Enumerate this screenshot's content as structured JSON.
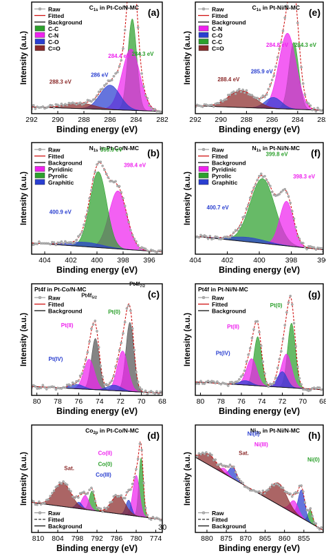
{
  "figure": {
    "stray_label": "30",
    "colors": {
      "raw": "#888888",
      "fitted": "#d01010",
      "background": "#111111",
      "c_c": "#2ca02c",
      "c_n": "#ee22ee",
      "c_o": "#2a3fd0",
      "c_eq_o": "#8b2a2a",
      "pyridinic": "#ee22ee",
      "pyrolic": "#2ca02c",
      "graphitic": "#2a3fd0",
      "pt0": "#555555",
      "ptII": "#ee22ee",
      "ptIV": "#2a3fd0",
      "co0": "#2ca02c",
      "coII": "#ee22ee",
      "coIII": "#2a3fd0",
      "sat": "#8b2a2a"
    }
  },
  "chart_data": [
    {
      "type": "line",
      "panel": "(a)",
      "title_main": "C",
      "title_sub": "1s",
      "title_rest": " in Pt-Co/N-MC",
      "xlabel": "Binding energy (eV)",
      "ylabel": "Intensity (a.u.)",
      "xlim": [
        292,
        282
      ],
      "x_reversed": true,
      "xticks": [
        292,
        290,
        288,
        286,
        284,
        282
      ],
      "legend": {
        "position": "top-left",
        "entries": [
          "Raw",
          "Fitted",
          "Background",
          "C-C",
          "C-N",
          "C-O",
          "C=O"
        ]
      },
      "background": {
        "left": 0.06,
        "right": 0.02
      },
      "series": [
        {
          "name": "C-C",
          "color_key": "c_c",
          "center": 284.3,
          "amplitude": 0.82,
          "fwhm": 0.8
        },
        {
          "name": "C-N",
          "color_key": "c_n",
          "center": 284.4,
          "amplitude": 0.55,
          "fwhm": 1.6
        },
        {
          "name": "C-O",
          "color_key": "c_o",
          "center": 286.0,
          "amplitude": 0.22,
          "fwhm": 1.8
        },
        {
          "name": "C=O",
          "color_key": "c_eq_o",
          "center": 288.3,
          "amplitude": 0.05,
          "fwhm": 2.6
        }
      ],
      "annotations": [
        {
          "text": "284.3 eV",
          "color_key": "c_c",
          "x": 283.5,
          "y": 0.52
        },
        {
          "text": "284.4 eV",
          "color_key": "c_n",
          "x": 285.3,
          "y": 0.5
        },
        {
          "text": "286 eV",
          "color_key": "c_o",
          "x": 286.8,
          "y": 0.33
        },
        {
          "text": "288.3 eV",
          "color_key": "c_eq_o",
          "x": 289.8,
          "y": 0.27
        }
      ]
    },
    {
      "type": "line",
      "panel": "(e)",
      "title_main": "C",
      "title_sub": "1s",
      "title_rest": " in Pt-Ni/N-MC",
      "xlabel": "Binding energy (eV)",
      "ylabel": "Intensity (a.u.)",
      "xlim": [
        292,
        282
      ],
      "x_reversed": true,
      "xticks": [
        292,
        290,
        288,
        286,
        284,
        282
      ],
      "legend": {
        "position": "top-left",
        "entries": [
          "Raw",
          "Fitted",
          "Background",
          "C-N",
          "C-O",
          "C-C",
          "C=O"
        ]
      },
      "background": {
        "left": 0.07,
        "right": 0.03
      },
      "series": [
        {
          "name": "C-N",
          "color_key": "c_c",
          "center": 284.3,
          "amplitude": 0.6,
          "fwhm": 0.9
        },
        {
          "name": "C-C",
          "color_key": "c_n",
          "center": 284.8,
          "amplitude": 0.68,
          "fwhm": 1.6
        },
        {
          "name": "C-O",
          "color_key": "c_o",
          "center": 285.9,
          "amplitude": 0.1,
          "fwhm": 1.5
        },
        {
          "name": "C=O",
          "color_key": "c_eq_o",
          "center": 288.4,
          "amplitude": 0.15,
          "fwhm": 2.4
        }
      ],
      "annotations": [
        {
          "text": "284.3 eV",
          "color_key": "c_c",
          "x": 283.4,
          "y": 0.6
        },
        {
          "text": "284.8 eV",
          "color_key": "c_n",
          "x": 285.6,
          "y": 0.6
        },
        {
          "text": "285.9 eV",
          "color_key": "c_o",
          "x": 286.8,
          "y": 0.36
        },
        {
          "text": "288.4 eV",
          "color_key": "c_eq_o",
          "x": 289.4,
          "y": 0.29
        }
      ]
    },
    {
      "type": "line",
      "panel": "(b)",
      "title_main": "N",
      "title_sub": "1s",
      "title_rest": " in Pt-Co/N-MC",
      "xlabel": "Binding energy (eV)",
      "ylabel": "Intensity (a.u.)",
      "xlim": [
        405,
        395
      ],
      "x_reversed": true,
      "xticks": [
        404,
        402,
        400,
        398,
        396
      ],
      "legend": {
        "position": "top-left",
        "entries": [
          "Raw",
          "Fitted",
          "Background",
          "Pyridinic",
          "Pyrolic",
          "Graphitic"
        ]
      },
      "background": {
        "left": 0.1,
        "right": 0.02
      },
      "series": [
        {
          "name": "Pyridinic",
          "color_key": "pyridinic",
          "center": 398.4,
          "amplitude": 0.52,
          "fwhm": 1.6
        },
        {
          "name": "Pyrolic",
          "color_key": "pyrolic",
          "center": 399.9,
          "amplitude": 0.68,
          "fwhm": 1.5
        },
        {
          "name": "Graphitic",
          "color_key": "graphitic",
          "center": 400.9,
          "amplitude": 0.04,
          "fwhm": 3.0
        }
      ],
      "annotations": [
        {
          "text": "399.9 eV",
          "color_key": "pyrolic",
          "x": 398.9,
          "y": 0.92
        },
        {
          "text": "398.4 eV",
          "color_key": "pyridinic",
          "x": 397.1,
          "y": 0.78
        },
        {
          "text": "400.9 eV",
          "color_key": "graphitic",
          "x": 402.8,
          "y": 0.36
        }
      ]
    },
    {
      "type": "line",
      "panel": "(f)",
      "title_main": "N",
      "title_sub": "1s",
      "title_rest": " in Pt-Ni/N-MC",
      "xlabel": "Binding energy (eV)",
      "ylabel": "Intensity (a.u.)",
      "xlim": [
        404,
        396
      ],
      "x_reversed": true,
      "xticks": [
        404,
        402,
        400,
        398,
        396
      ],
      "legend": {
        "position": "top-left",
        "entries": [
          "Raw",
          "Fitted",
          "Background",
          "Pyridinic",
          "Pyrolic",
          "Graphitic"
        ]
      },
      "background": {
        "left": 0.16,
        "right": 0.04
      },
      "series": [
        {
          "name": "Pyrolic",
          "color_key": "pyrolic",
          "center": 399.8,
          "amplitude": 0.58,
          "fwhm": 1.8
        },
        {
          "name": "Pyridinic",
          "color_key": "pyridinic",
          "center": 398.3,
          "amplitude": 0.4,
          "fwhm": 1.0
        },
        {
          "name": "Graphitic",
          "color_key": "graphitic",
          "center": 400.7,
          "amplitude": 0.04,
          "fwhm": 2.6
        }
      ],
      "annotations": [
        {
          "text": "399.8 eV",
          "color_key": "pyrolic",
          "x": 398.9,
          "y": 0.88
        },
        {
          "text": "398.3 eV",
          "color_key": "pyridinic",
          "x": 397.2,
          "y": 0.68
        },
        {
          "text": "400.7 eV",
          "color_key": "graphitic",
          "x": 402.6,
          "y": 0.4
        }
      ]
    },
    {
      "type": "line",
      "panel": "(c)",
      "title_main": "Pt4f in Pt-Co/N-MC",
      "xlabel": "Binding energy (eV)",
      "ylabel": "Intensity (a.u.)",
      "xlim": [
        80.5,
        68
      ],
      "x_reversed": true,
      "xticks": [
        80,
        78,
        76,
        74,
        72,
        70,
        68
      ],
      "legend": {
        "position": "top-left",
        "entries": [
          "Raw",
          "Fitted",
          "Background"
        ]
      },
      "background": {
        "left": 0.08,
        "right": 0.02
      },
      "series": [
        {
          "name": "Pt(0)",
          "color_key": "pt0",
          "center": 71.1,
          "amplitude": 0.62,
          "fwhm": 0.9
        },
        {
          "name": "Pt(0)",
          "color_key": "pt0",
          "center": 74.4,
          "amplitude": 0.46,
          "fwhm": 0.9
        },
        {
          "name": "Pt(II)",
          "color_key": "ptII",
          "center": 71.8,
          "amplitude": 0.36,
          "fwhm": 1.2
        },
        {
          "name": "Pt(II)",
          "color_key": "ptII",
          "center": 75.0,
          "amplitude": 0.27,
          "fwhm": 1.2
        },
        {
          "name": "Pt(IV)",
          "color_key": "ptIV",
          "center": 72.6,
          "amplitude": 0.05,
          "fwhm": 1.6
        },
        {
          "name": "Pt(IV)",
          "color_key": "ptIV",
          "center": 76.2,
          "amplitude": 0.04,
          "fwhm": 1.6
        }
      ],
      "annotations": [
        {
          "text": "Pt4f",
          "sub": "5/2",
          "color_key": "background",
          "x": 75.0,
          "y": 0.88
        },
        {
          "text": "Pt4f",
          "sub": "7/2",
          "color_key": "background",
          "x": 70.4,
          "y": 0.98
        },
        {
          "text": "Pt(0)",
          "color_key": "co0",
          "x": 72.6,
          "y": 0.73
        },
        {
          "text": "Pt(II)",
          "color_key": "ptII",
          "x": 77.1,
          "y": 0.61
        },
        {
          "text": "Pt(IV)",
          "color_key": "ptIV",
          "x": 78.2,
          "y": 0.31
        }
      ]
    },
    {
      "type": "line",
      "panel": "(g)",
      "title_main": "Pt4f in Pt-Ni/N-MC",
      "xlabel": "Binding energy (eV)",
      "ylabel": "Intensity (a.u.)",
      "xlim": [
        80.5,
        68
      ],
      "x_reversed": true,
      "xticks": [
        80,
        78,
        76,
        74,
        72,
        70,
        68
      ],
      "legend": {
        "position": "top-left",
        "entries": [
          "Raw",
          "Fitted",
          "Background"
        ]
      },
      "background": {
        "left": 0.12,
        "right": 0.05
      },
      "series": [
        {
          "name": "Pt(0)",
          "color_key": "pyrolic",
          "center": 71.1,
          "amplitude": 0.58,
          "fwhm": 0.9
        },
        {
          "name": "Pt(0)",
          "color_key": "pyrolic",
          "center": 74.4,
          "amplitude": 0.44,
          "fwhm": 0.9
        },
        {
          "name": "Pt(II)",
          "color_key": "ptII",
          "center": 71.6,
          "amplitude": 0.3,
          "fwhm": 1.2
        },
        {
          "name": "Pt(II)",
          "color_key": "ptII",
          "center": 75.0,
          "amplitude": 0.24,
          "fwhm": 1.2
        },
        {
          "name": "Pt(IV)",
          "color_key": "ptIV",
          "center": 72.0,
          "amplitude": 0.14,
          "fwhm": 1.1
        },
        {
          "name": "Pt(IV)",
          "color_key": "ptIV",
          "center": 75.6,
          "amplitude": 0.04,
          "fwhm": 1.4
        }
      ],
      "annotations": [
        {
          "text": "Pt(0)",
          "color_key": "co0",
          "x": 72.6,
          "y": 0.79
        },
        {
          "text": "Pt(II)",
          "color_key": "ptII",
          "x": 76.8,
          "y": 0.6
        },
        {
          "text": "Pt(IV)",
          "color_key": "ptIV",
          "x": 77.8,
          "y": 0.36
        }
      ]
    },
    {
      "type": "line",
      "panel": "(d)",
      "title_main": "Co",
      "title_sub": "2p",
      "title_rest": " in Pt-Co/N-MC",
      "xlabel": "Binding energy (eV)",
      "ylabel": "Intensity (a.u.)",
      "xlim": [
        812,
        772
      ],
      "x_reversed": true,
      "xticks": [
        810,
        804,
        798,
        792,
        786,
        780,
        774
      ],
      "legend": {
        "position": "bottom-left",
        "entries": [
          "Raw",
          "Fitted",
          "Background"
        ]
      },
      "background": {
        "left": 0.28,
        "right": 0.12
      },
      "series": [
        {
          "name": "Co(0)",
          "color_key": "co0",
          "center": 778.5,
          "amplitude": 0.55,
          "fwhm": 1.6
        },
        {
          "name": "Co(II)",
          "color_key": "coII",
          "center": 780.0,
          "amplitude": 0.38,
          "fwhm": 2.4
        },
        {
          "name": "Co(III)",
          "color_key": "coIII",
          "center": 782.3,
          "amplitude": 0.14,
          "fwhm": 2.0
        },
        {
          "name": "Sat.",
          "color_key": "sat",
          "center": 785.5,
          "amplitude": 0.17,
          "fwhm": 5.0
        },
        {
          "name": "Co(0)",
          "color_key": "co0",
          "center": 793.5,
          "amplitude": 0.18,
          "fwhm": 2.0
        },
        {
          "name": "Co(II)",
          "color_key": "coII",
          "center": 795.6,
          "amplitude": 0.13,
          "fwhm": 2.6
        },
        {
          "name": "Co(III)",
          "color_key": "coIII",
          "center": 797.5,
          "amplitude": 0.06,
          "fwhm": 2.2
        },
        {
          "name": "Sat.",
          "color_key": "sat",
          "center": 802.5,
          "amplitude": 0.22,
          "fwhm": 6.0
        }
      ],
      "annotations": [
        {
          "text": "Sat.",
          "color_key": "sat",
          "x": 800.5,
          "y": 0.58
        },
        {
          "text": "Co(II)",
          "color_key": "coII",
          "x": 789.5,
          "y": 0.72
        },
        {
          "text": "Co(0)",
          "color_key": "co0",
          "x": 789.5,
          "y": 0.62
        },
        {
          "text": "Co(III)",
          "color_key": "coIII",
          "x": 790.0,
          "y": 0.52
        }
      ]
    },
    {
      "type": "line",
      "panel": "(h)",
      "title_main": "Ni",
      "title_sub": "2p",
      "title_rest": " in Pt-Ni/N-MC",
      "xlabel": "Binding energy (eV)",
      "ylabel": "Intensity (a.u.)",
      "xlim": [
        883,
        850
      ],
      "x_reversed": true,
      "xticks": [
        880,
        875,
        870,
        865,
        860,
        855
      ],
      "legend": {
        "position": "bottom-left",
        "entries": [
          "Raw",
          "Fitted",
          "Background"
        ]
      },
      "background": {
        "left": 0.7,
        "right": 0.02
      },
      "series": [
        {
          "name": "Ni(0)",
          "color_key": "co0",
          "center": 853.3,
          "amplitude": 0.12,
          "fwhm": 1.4
        },
        {
          "name": "Ni(II)",
          "color_key": "ptIV",
          "center": 855.6,
          "amplitude": 0.26,
          "fwhm": 2.0
        },
        {
          "name": "Ni(III)",
          "color_key": "ptII",
          "center": 857.5,
          "amplitude": 0.12,
          "fwhm": 2.6
        },
        {
          "name": "Sat.",
          "color_key": "sat",
          "center": 861.5,
          "amplitude": 0.2,
          "fwhm": 5.0
        },
        {
          "name": "Ni(II)",
          "color_key": "ptIV",
          "center": 873.3,
          "amplitude": 0.11,
          "fwhm": 2.2
        },
        {
          "name": "Ni(III)",
          "color_key": "ptII",
          "center": 875.5,
          "amplitude": 0.05,
          "fwhm": 2.2
        },
        {
          "name": "Sat.",
          "color_key": "sat",
          "center": 879.5,
          "amplitude": 0.1,
          "fwhm": 4.5
        }
      ],
      "annotations": [
        {
          "text": "Ni(II)",
          "color_key": "ptIV",
          "x": 868.0,
          "y": 0.9
        },
        {
          "text": "Ni(III)",
          "color_key": "ptII",
          "x": 866.0,
          "y": 0.8
        },
        {
          "text": "Sat.",
          "color_key": "sat",
          "x": 870.5,
          "y": 0.72
        },
        {
          "text": "Ni(0)",
          "color_key": "co0",
          "x": 852.5,
          "y": 0.66
        }
      ]
    }
  ]
}
